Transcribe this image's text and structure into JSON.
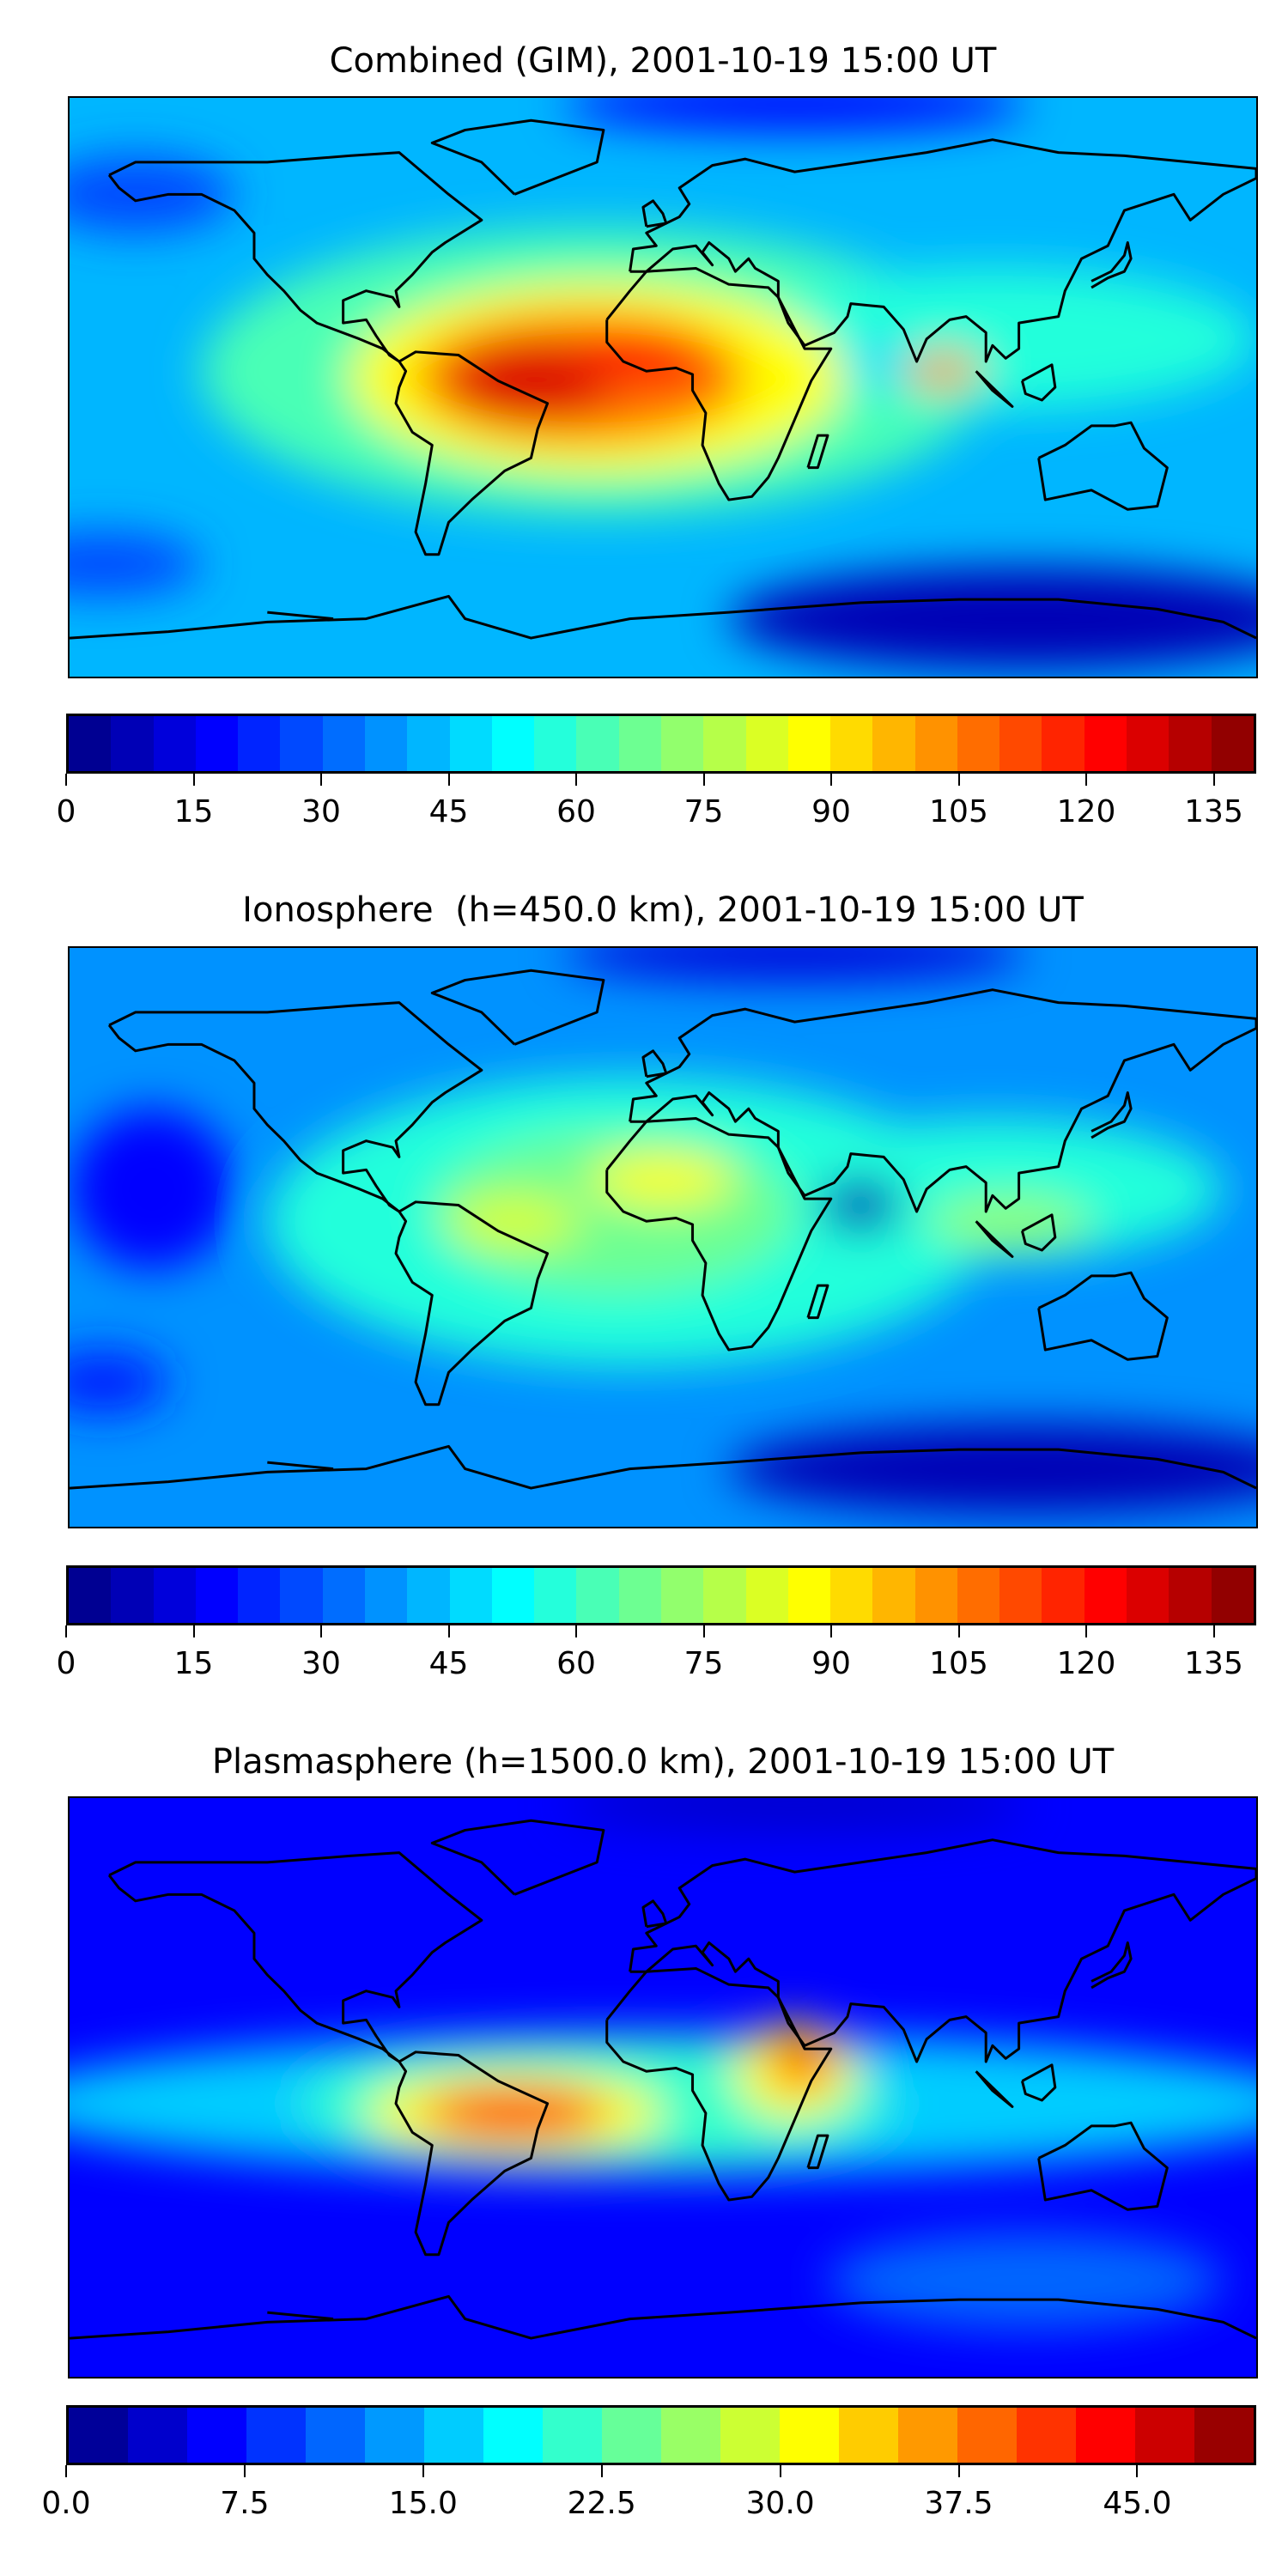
{
  "chart_data": [
    {
      "type": "heatmap",
      "title": "Combined (GIM), 2001-10-19 15:00 UT",
      "projection": "global lon/lat map with coastlines",
      "xlim": [
        -180,
        180
      ],
      "ylim": [
        -90,
        90
      ],
      "colormap": "jet",
      "levels": {
        "min": 0,
        "max": 140,
        "step": 5
      },
      "colorbar_ticks": [
        "0",
        "15",
        "30",
        "45",
        "60",
        "75",
        "90",
        "105",
        "120",
        "135"
      ],
      "colorbar_tick_values": [
        0,
        15,
        30,
        45,
        60,
        75,
        90,
        105,
        120,
        135
      ],
      "base_value": 42,
      "features": [
        {
          "lon": -20,
          "lat": 5,
          "rlon": 120,
          "rlat": 45,
          "value": 62
        },
        {
          "lon": 100,
          "lat": 15,
          "rlon": 80,
          "rlat": 22,
          "value": 58
        },
        {
          "lon": -20,
          "lat": 3,
          "rlon": 75,
          "rlat": 30,
          "value": 85
        },
        {
          "lon": -25,
          "lat": 3,
          "rlon": 50,
          "rlat": 20,
          "value": 105
        },
        {
          "lon": -40,
          "lat": 2,
          "rlon": 25,
          "rlat": 12,
          "value": 125
        },
        {
          "lon": -5,
          "lat": 10,
          "rlon": 20,
          "rlat": 8,
          "value": 120
        },
        {
          "lon": 85,
          "lat": 5,
          "rlon": 12,
          "rlat": 6,
          "value": 100
        },
        {
          "lon": 65,
          "lat": 8,
          "rlon": 10,
          "rlat": 6,
          "value": 45
        },
        {
          "lon": 110,
          "lat": -72,
          "rlon": 90,
          "rlat": 16,
          "value": 8
        },
        {
          "lon": 40,
          "lat": 88,
          "rlon": 70,
          "rlat": 8,
          "value": 15
        },
        {
          "lon": -170,
          "lat": -55,
          "rlon": 30,
          "rlat": 10,
          "value": 25
        },
        {
          "lon": -160,
          "lat": 60,
          "rlon": 30,
          "rlat": 12,
          "value": 28
        }
      ]
    },
    {
      "type": "heatmap",
      "title": "Ionosphere  (h=450.0 km), 2001-10-19 15:00 UT",
      "projection": "global lon/lat map with coastlines",
      "xlim": [
        -180,
        180
      ],
      "ylim": [
        -90,
        90
      ],
      "colormap": "jet",
      "levels": {
        "min": 0,
        "max": 140,
        "step": 5
      },
      "colorbar_ticks": [
        "0",
        "15",
        "30",
        "45",
        "60",
        "75",
        "90",
        "105",
        "120",
        "135"
      ],
      "colorbar_tick_values": [
        0,
        15,
        30,
        45,
        60,
        75,
        90,
        105,
        120,
        135
      ],
      "base_value": 38,
      "features": [
        {
          "lon": -10,
          "lat": 5,
          "rlon": 110,
          "rlat": 45,
          "value": 55
        },
        {
          "lon": 100,
          "lat": 15,
          "rlon": 70,
          "rlat": 22,
          "value": 55
        },
        {
          "lon": -15,
          "lat": 8,
          "rlon": 55,
          "rlat": 25,
          "value": 68
        },
        {
          "lon": 0,
          "lat": 18,
          "rlon": 22,
          "rlat": 8,
          "value": 88
        },
        {
          "lon": -45,
          "lat": 5,
          "rlon": 20,
          "rlat": 8,
          "value": 80
        },
        {
          "lon": 105,
          "lat": 5,
          "rlon": 25,
          "rlat": 8,
          "value": 72
        },
        {
          "lon": 60,
          "lat": 10,
          "rlon": 12,
          "rlat": 8,
          "value": 5
        },
        {
          "lon": -155,
          "lat": 15,
          "rlon": 25,
          "rlat": 25,
          "value": 15
        },
        {
          "lon": 110,
          "lat": -72,
          "rlon": 90,
          "rlat": 14,
          "value": 8
        },
        {
          "lon": 40,
          "lat": 88,
          "rlon": 70,
          "rlat": 8,
          "value": 10
        },
        {
          "lon": -170,
          "lat": -45,
          "rlon": 20,
          "rlat": 10,
          "value": 20
        }
      ]
    },
    {
      "type": "heatmap",
      "title": "Plasmasphere (h=1500.0 km), 2001-10-19 15:00 UT",
      "projection": "global lon/lat map with coastlines",
      "xlim": [
        -180,
        180
      ],
      "ylim": [
        -90,
        90
      ],
      "colormap": "jet",
      "levels": {
        "min": 0,
        "max": 50,
        "step": 2.5
      },
      "colorbar_ticks": [
        "0.0",
        "7.5",
        "15.0",
        "22.5",
        "30.0",
        "37.5",
        "45.0"
      ],
      "colorbar_tick_values": [
        0,
        7.5,
        15,
        22.5,
        30,
        37.5,
        45
      ],
      "base_value": 7,
      "features": [
        {
          "lon": 0,
          "lat": -5,
          "rlon": 200,
          "rlat": 22,
          "value": 15
        },
        {
          "lon": -20,
          "lat": -5,
          "rlon": 90,
          "rlat": 20,
          "value": 20
        },
        {
          "lon": -45,
          "lat": -8,
          "rlon": 45,
          "rlat": 13,
          "value": 30
        },
        {
          "lon": 40,
          "lat": 5,
          "rlon": 18,
          "rlat": 15,
          "value": 30
        },
        {
          "lon": -45,
          "lat": -8,
          "rlon": 28,
          "rlat": 8,
          "value": 42
        },
        {
          "lon": 42,
          "lat": 8,
          "rlon": 9,
          "rlat": 8,
          "value": 43
        },
        {
          "lon": 110,
          "lat": -60,
          "rlon": 60,
          "rlat": 15,
          "value": 10
        },
        {
          "lon": 40,
          "lat": 88,
          "rlon": 70,
          "rlat": 8,
          "value": 3
        }
      ]
    }
  ]
}
